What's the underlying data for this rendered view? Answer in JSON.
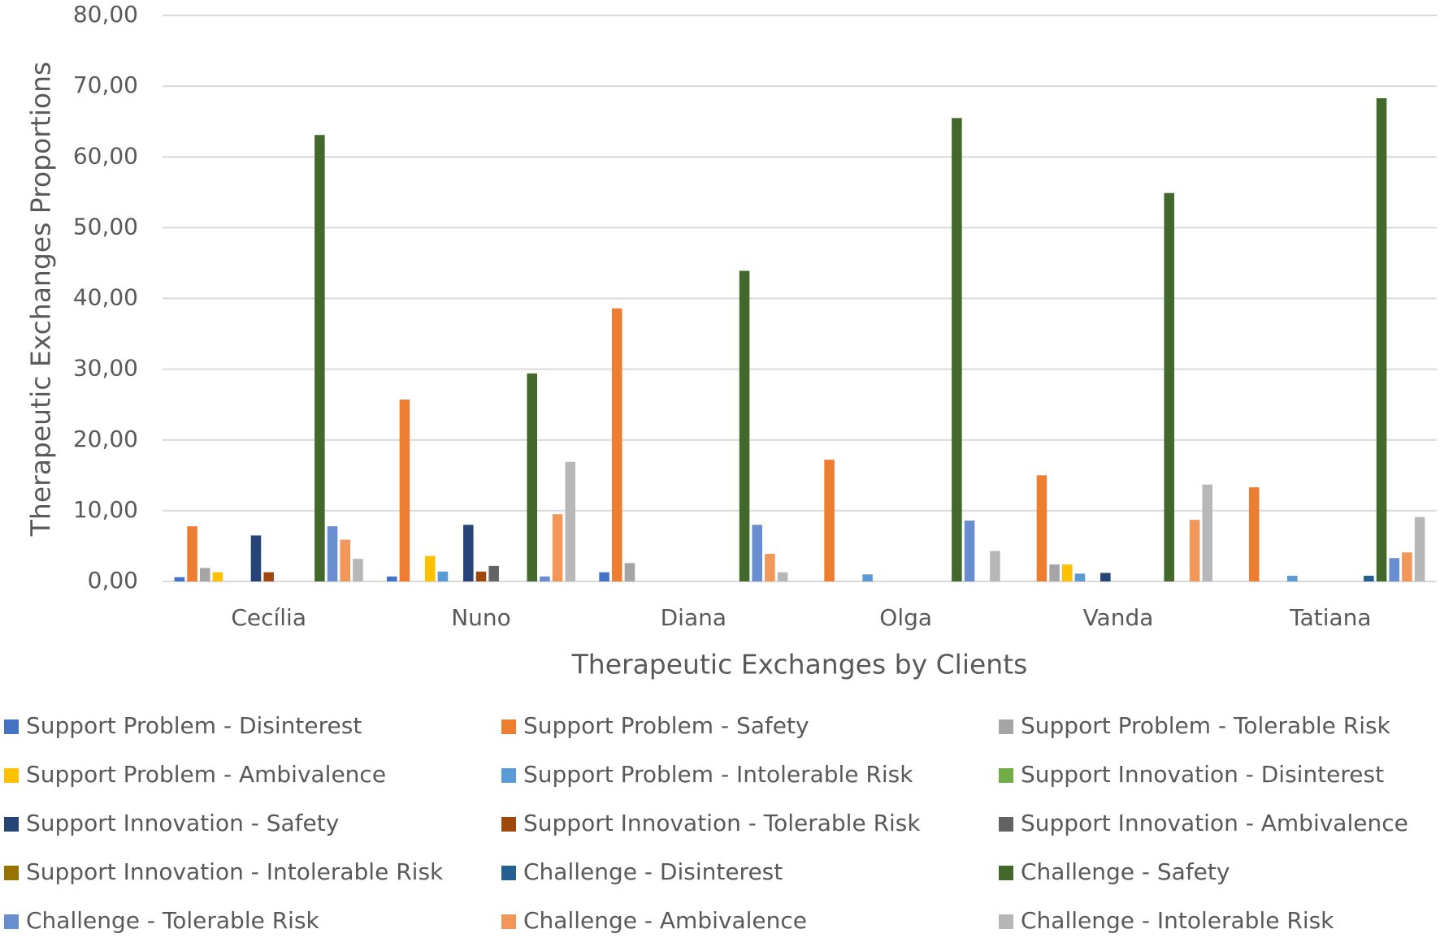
{
  "chart_data": {
    "type": "bar",
    "x_label": "Therapeutic Exchanges by Clients",
    "y_label": "Therapeutic Exchanges Proportions",
    "categories": [
      "Cecília",
      "Nuno",
      "Diana",
      "Olga",
      "Vanda",
      "Tatiana"
    ],
    "ylim": [
      0,
      80
    ],
    "yticks": [
      {
        "value": 0,
        "label": "0,00"
      },
      {
        "value": 10,
        "label": "10,00"
      },
      {
        "value": 20,
        "label": "20,00"
      },
      {
        "value": 30,
        "label": "30,00"
      },
      {
        "value": 40,
        "label": "40,00"
      },
      {
        "value": 50,
        "label": "50,00"
      },
      {
        "value": 60,
        "label": "60,00"
      },
      {
        "value": 70,
        "label": "70,00"
      },
      {
        "value": 80,
        "label": "80,00"
      }
    ],
    "grid": true,
    "legend": "bottom",
    "series": [
      {
        "name": "Support Problem - Disinterest",
        "color": "#4472c4",
        "values": [
          0.6,
          0.7,
          1.3,
          0,
          0,
          0
        ]
      },
      {
        "name": "Support Problem - Safety",
        "color": "#ed7d31",
        "values": [
          7.8,
          25.7,
          38.6,
          17.2,
          15.0,
          13.3
        ]
      },
      {
        "name": "Support Problem - Tolerable Risk",
        "color": "#a5a5a5",
        "values": [
          1.9,
          0,
          2.6,
          0,
          2.4,
          0
        ]
      },
      {
        "name": "Support Problem - Ambivalence",
        "color": "#ffc000",
        "values": [
          1.3,
          3.6,
          0,
          0,
          2.4,
          0
        ]
      },
      {
        "name": "Support Problem - Intolerable Risk",
        "color": "#5b9bd5",
        "values": [
          0,
          1.4,
          0,
          1.0,
          1.1,
          0.8
        ]
      },
      {
        "name": "Support Innovation - Disinterest",
        "color": "#70ad47",
        "values": [
          0,
          0,
          0,
          0,
          0,
          0
        ]
      },
      {
        "name": "Support Innovation - Safety",
        "color": "#264478",
        "values": [
          6.5,
          8.0,
          0,
          0,
          1.2,
          0
        ]
      },
      {
        "name": "Support Innovation - Tolerable Risk",
        "color": "#9e480e",
        "values": [
          1.3,
          1.4,
          0,
          0,
          0,
          0
        ]
      },
      {
        "name": "Support Innovation - Ambivalence",
        "color": "#636363",
        "values": [
          0,
          2.2,
          0,
          0,
          0,
          0
        ]
      },
      {
        "name": "Support Innovation - Intolerable Risk",
        "color": "#997300",
        "values": [
          0,
          0,
          0,
          0,
          0,
          0
        ]
      },
      {
        "name": "Challenge - Disinterest",
        "color": "#255e91",
        "values": [
          0,
          0,
          0,
          0,
          0,
          0.8
        ]
      },
      {
        "name": "Challenge - Safety",
        "color": "#43682b",
        "values": [
          63.1,
          29.4,
          43.9,
          65.5,
          54.9,
          68.3
        ]
      },
      {
        "name": "Challenge - Tolerable Risk",
        "color": "#698ed0",
        "values": [
          7.8,
          0.7,
          8.0,
          8.6,
          0,
          3.3
        ]
      },
      {
        "name": "Challenge - Ambivalence",
        "color": "#f1975a",
        "values": [
          5.9,
          9.5,
          3.9,
          0,
          8.7,
          4.1
        ]
      },
      {
        "name": "Challenge - Intolerable Risk",
        "color": "#b7b7b7",
        "values": [
          3.2,
          16.9,
          1.3,
          4.3,
          13.7,
          9.1
        ]
      }
    ]
  }
}
